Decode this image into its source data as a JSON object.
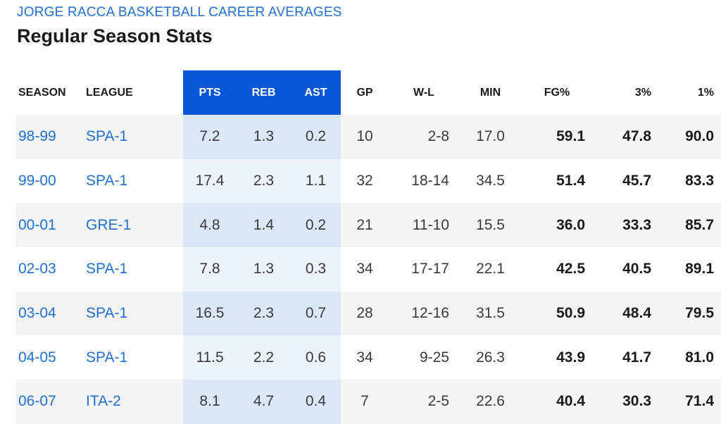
{
  "header": {
    "kicker": "JORGE RACCA BASKETBALL CAREER AVERAGES",
    "title": "Regular Season Stats"
  },
  "colors": {
    "accent": "#0757d6",
    "link": "#1f6fd1",
    "highlight_odd": "#dbe7f7",
    "highlight_even": "#edf3fb",
    "row_stripe": "#f4f4f4"
  },
  "table": {
    "columns": {
      "season": "SEASON",
      "league": "LEAGUE",
      "pts": "PTS",
      "reb": "REB",
      "ast": "AST",
      "gp": "GP",
      "wl": "W-L",
      "min": "MIN",
      "fg": "FG%",
      "three": "3%",
      "ft": "1%"
    },
    "rows": [
      {
        "season": "98-99",
        "league": "SPA-1",
        "pts": "7.2",
        "reb": "1.3",
        "ast": "0.2",
        "gp": "10",
        "wl": "2-8",
        "min": "17.0",
        "fg": "59.1",
        "three": "47.8",
        "ft": "90.0"
      },
      {
        "season": "99-00",
        "league": "SPA-1",
        "pts": "17.4",
        "reb": "2.3",
        "ast": "1.1",
        "gp": "32",
        "wl": "18-14",
        "min": "34.5",
        "fg": "51.4",
        "three": "45.7",
        "ft": "83.3"
      },
      {
        "season": "00-01",
        "league": "GRE-1",
        "pts": "4.8",
        "reb": "1.4",
        "ast": "0.2",
        "gp": "21",
        "wl": "11-10",
        "min": "15.5",
        "fg": "36.0",
        "three": "33.3",
        "ft": "85.7"
      },
      {
        "season": "02-03",
        "league": "SPA-1",
        "pts": "7.8",
        "reb": "1.3",
        "ast": "0.3",
        "gp": "34",
        "wl": "17-17",
        "min": "22.1",
        "fg": "42.5",
        "three": "40.5",
        "ft": "89.1"
      },
      {
        "season": "03-04",
        "league": "SPA-1",
        "pts": "16.5",
        "reb": "2.3",
        "ast": "0.7",
        "gp": "28",
        "wl": "12-16",
        "min": "31.5",
        "fg": "50.9",
        "three": "48.4",
        "ft": "79.5"
      },
      {
        "season": "04-05",
        "league": "SPA-1",
        "pts": "11.5",
        "reb": "2.2",
        "ast": "0.6",
        "gp": "34",
        "wl": "9-25",
        "min": "26.3",
        "fg": "43.9",
        "three": "41.7",
        "ft": "81.0"
      },
      {
        "season": "06-07",
        "league": "ITA-2",
        "pts": "8.1",
        "reb": "4.7",
        "ast": "0.4",
        "gp": "7",
        "wl": "2-5",
        "min": "22.6",
        "fg": "40.4",
        "three": "30.3",
        "ft": "71.4"
      }
    ]
  }
}
